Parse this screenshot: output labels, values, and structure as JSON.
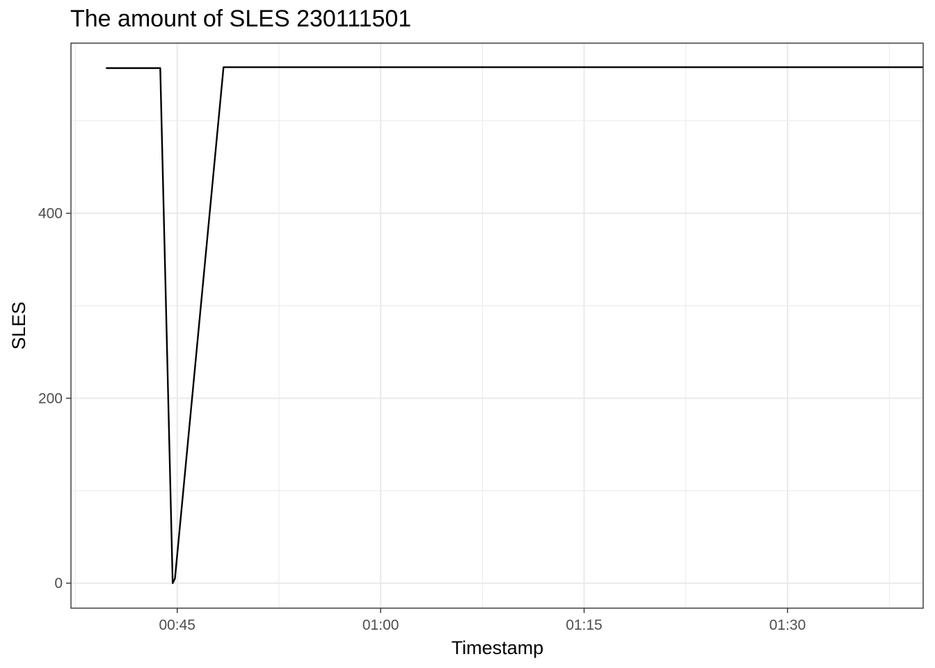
{
  "chart_data": {
    "type": "line",
    "title": "The amount of SLES 230111501",
    "xlabel": "Timestamp",
    "ylabel": "SLES",
    "x_unit": "time (HH:MM)",
    "xlim": [
      "00:37:10",
      "01:40:00"
    ],
    "ylim": [
      -27,
      584
    ],
    "x_ticks": [
      "00:45",
      "01:00",
      "01:15",
      "01:30"
    ],
    "y_ticks": [
      0,
      200,
      400
    ],
    "grid": true,
    "legend": "none",
    "line_color": "#000000",
    "series": [
      {
        "points": [
          {
            "x": "00:39:45",
            "y": 557
          },
          {
            "x": "00:43:45",
            "y": 557
          },
          {
            "x": "00:44:40",
            "y": 0
          },
          {
            "x": "00:44:50",
            "y": 5
          },
          {
            "x": "00:48:25",
            "y": 558
          },
          {
            "x": "01:40:00",
            "y": 558
          }
        ]
      }
    ]
  }
}
